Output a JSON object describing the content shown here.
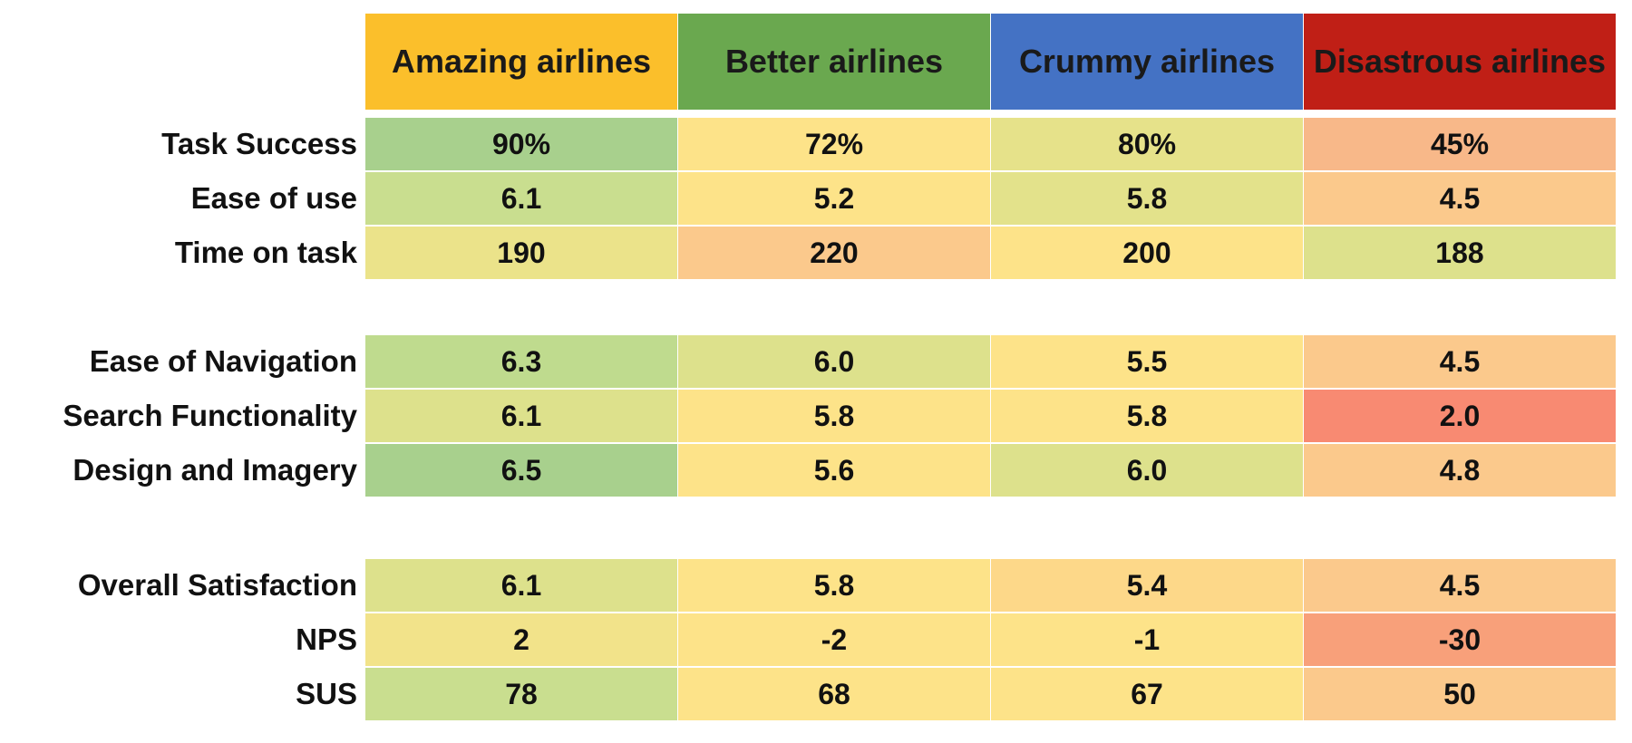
{
  "chart_data": {
    "type": "table",
    "columns": [
      {
        "name": "Amazing airlines",
        "color": "#fbbf2b",
        "text_color": "#1a1a1a"
      },
      {
        "name": "Better airlines",
        "color": "#6aa84f",
        "text_color": "#1a1a1a"
      },
      {
        "name": "Crummy airlines",
        "color": "#4472c4",
        "text_color": "#1a1a1a"
      },
      {
        "name": "Disastrous airlines",
        "color": "#c01f16",
        "text_color": "#1a1a1a"
      }
    ],
    "groups": [
      {
        "rows": [
          {
            "label": "Task Success",
            "values": [
              "90%",
              "72%",
              "80%",
              "45%"
            ],
            "colors": [
              "#a8d08d",
              "#fde389",
              "#e6e28a",
              "#f8b889"
            ]
          },
          {
            "label": "Ease of use",
            "values": [
              "6.1",
              "5.2",
              "5.8",
              "4.5"
            ],
            "colors": [
              "#c9de8f",
              "#fde389",
              "#e3e28b",
              "#fbc98c"
            ]
          },
          {
            "label": "Time on task",
            "values": [
              "190",
              "220",
              "200",
              "188"
            ],
            "colors": [
              "#ebe38a",
              "#fbc98c",
              "#fde389",
              "#dde18c"
            ]
          }
        ]
      },
      {
        "rows": [
          {
            "label": "Ease of Navigation",
            "values": [
              "6.3",
              "6.0",
              "5.5",
              "4.5"
            ],
            "colors": [
              "#bfdb8e",
              "#dde18c",
              "#fde389",
              "#fbc98c"
            ]
          },
          {
            "label": "Search Functionality",
            "values": [
              "6.1",
              "5.8",
              "5.8",
              "2.0"
            ],
            "colors": [
              "#dde18c",
              "#fde389",
              "#fde389",
              "#f88a72"
            ]
          },
          {
            "label": "Design and Imagery",
            "values": [
              "6.5",
              "5.6",
              "6.0",
              "4.8"
            ],
            "colors": [
              "#a8d08d",
              "#fde389",
              "#dde18c",
              "#fbc98c"
            ]
          }
        ]
      },
      {
        "rows": [
          {
            "label": "Overall Satisfaction",
            "values": [
              "6.1",
              "5.8",
              "5.4",
              "4.5"
            ],
            "colors": [
              "#dde18c",
              "#fde389",
              "#fdd889",
              "#fbc98c"
            ]
          },
          {
            "label": "NPS",
            "values": [
              "2",
              "-2",
              "-1",
              "-30"
            ],
            "colors": [
              "#f2e38a",
              "#fde389",
              "#fde389",
              "#f8a07a"
            ]
          },
          {
            "label": "SUS",
            "values": [
              "78",
              "68",
              "67",
              "50"
            ],
            "colors": [
              "#c9de8f",
              "#fde389",
              "#fde389",
              "#fbc98c"
            ]
          }
        ]
      }
    ]
  }
}
